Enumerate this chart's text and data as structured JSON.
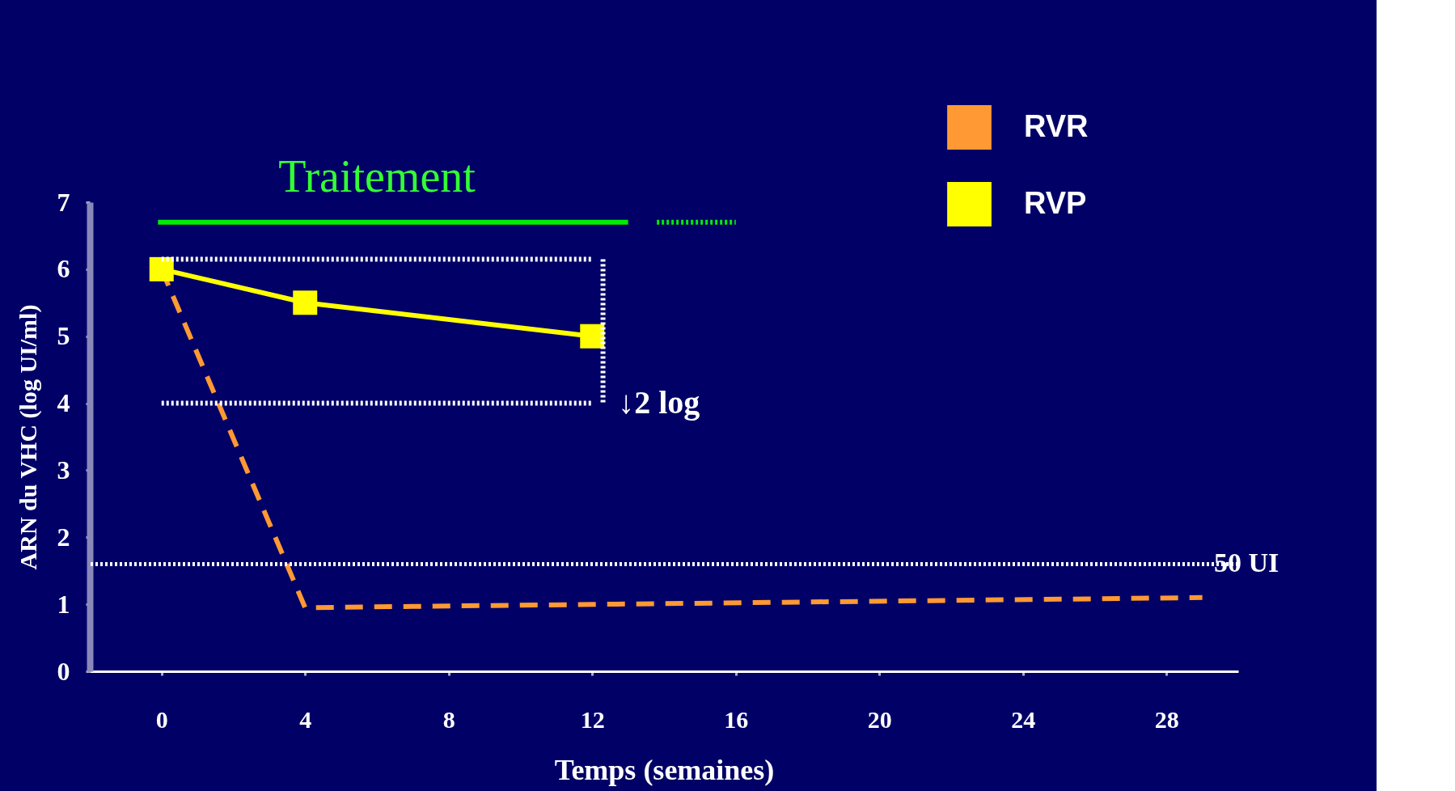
{
  "chart_data": {
    "type": "line",
    "xlabel": "Temps (semaines)",
    "ylabel": "ARN du VHC (log UI/ml)",
    "xlim": [
      -2,
      30
    ],
    "xticks": [
      0,
      4,
      8,
      12,
      16,
      20,
      24,
      28
    ],
    "ylim": [
      0,
      7
    ],
    "yticks": [
      0,
      1,
      2,
      3,
      4,
      5,
      6,
      7
    ],
    "grid": false,
    "legend": "top right",
    "series": [
      {
        "name": "RVR",
        "color": "#ff9933",
        "x": [
          0,
          4,
          29
        ],
        "values": [
          6.0,
          0.95,
          1.1
        ],
        "line_style": "dashed",
        "marker": "none"
      },
      {
        "name": "RVP",
        "color": "#ffff00",
        "x": [
          0,
          4,
          12
        ],
        "values": [
          6.0,
          5.5,
          5.0
        ],
        "line_style": "solid",
        "marker": "square"
      },
      {
        "color": "#00ee00",
        "x": [
          -0.1,
          13.0
        ],
        "values": [
          6.7,
          6.7
        ],
        "line_style": "solid",
        "marker": "none"
      },
      {
        "color": "#00ee00",
        "x": [
          13.8,
          16
        ],
        "values": [
          6.7,
          6.7
        ],
        "line_style": "dotted",
        "marker": "none"
      },
      {
        "color": "#ffffff",
        "x": [
          0,
          12
        ],
        "values": [
          6.15,
          6.15
        ],
        "line_style": "dotted",
        "marker": "none"
      },
      {
        "color": "#ffffff",
        "x": [
          0,
          12
        ],
        "values": [
          4.0,
          4.0
        ],
        "line_style": "dotted",
        "marker": "none"
      },
      {
        "color": "#ffffff",
        "x": [
          12.3,
          12.3
        ],
        "values": [
          6.15,
          4.0
        ],
        "line_style": "dotted",
        "marker": "none"
      }
    ],
    "ref_lines": [
      {
        "axis": "y",
        "value": 1.6,
        "label": "50 UI",
        "color": "#ffffff",
        "line_style": "dotted"
      }
    ],
    "annotations": [
      "Traitement",
      "↓2 log"
    ]
  }
}
